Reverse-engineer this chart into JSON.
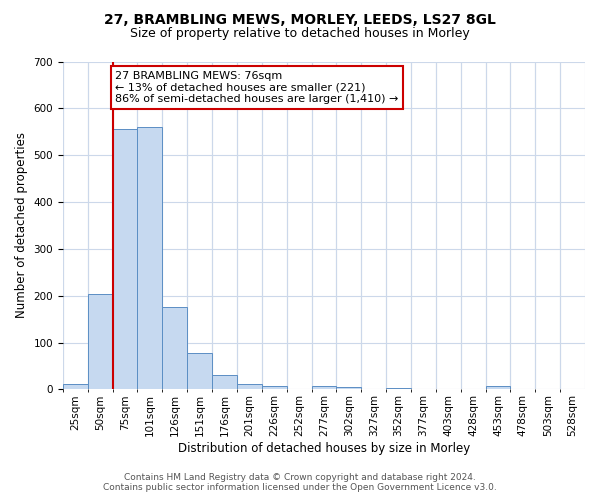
{
  "title": "27, BRAMBLING MEWS, MORLEY, LEEDS, LS27 8GL",
  "subtitle": "Size of property relative to detached houses in Morley",
  "xlabel": "Distribution of detached houses by size in Morley",
  "ylabel": "Number of detached properties",
  "bin_labels": [
    "25sqm",
    "50sqm",
    "75sqm",
    "101sqm",
    "126sqm",
    "151sqm",
    "176sqm",
    "201sqm",
    "226sqm",
    "252sqm",
    "277sqm",
    "302sqm",
    "327sqm",
    "352sqm",
    "377sqm",
    "403sqm",
    "428sqm",
    "453sqm",
    "478sqm",
    "503sqm",
    "528sqm"
  ],
  "bar_heights": [
    12,
    204,
    556,
    560,
    177,
    77,
    30,
    12,
    8,
    0,
    7,
    5,
    0,
    3,
    0,
    0,
    0,
    7,
    0,
    0,
    0
  ],
  "bar_color": "#c6d9f0",
  "bar_edge_color": "#5b8ec4",
  "ylim": [
    0,
    700
  ],
  "yticks": [
    0,
    100,
    200,
    300,
    400,
    500,
    600,
    700
  ],
  "property_bin_index": 2,
  "annotation_text": "27 BRAMBLING MEWS: 76sqm\n← 13% of detached houses are smaller (221)\n86% of semi-detached houses are larger (1,410) →",
  "annotation_box_color": "#ffffff",
  "annotation_box_edge_color": "#cc0000",
  "red_line_color": "#cc0000",
  "footer_line1": "Contains HM Land Registry data © Crown copyright and database right 2024.",
  "footer_line2": "Contains public sector information licensed under the Open Government Licence v3.0.",
  "bg_color": "#ffffff",
  "grid_color": "#ccd8ea",
  "title_fontsize": 10,
  "subtitle_fontsize": 9,
  "axis_label_fontsize": 8.5,
  "tick_fontsize": 7.5,
  "annotation_fontsize": 8,
  "footer_fontsize": 6.5
}
